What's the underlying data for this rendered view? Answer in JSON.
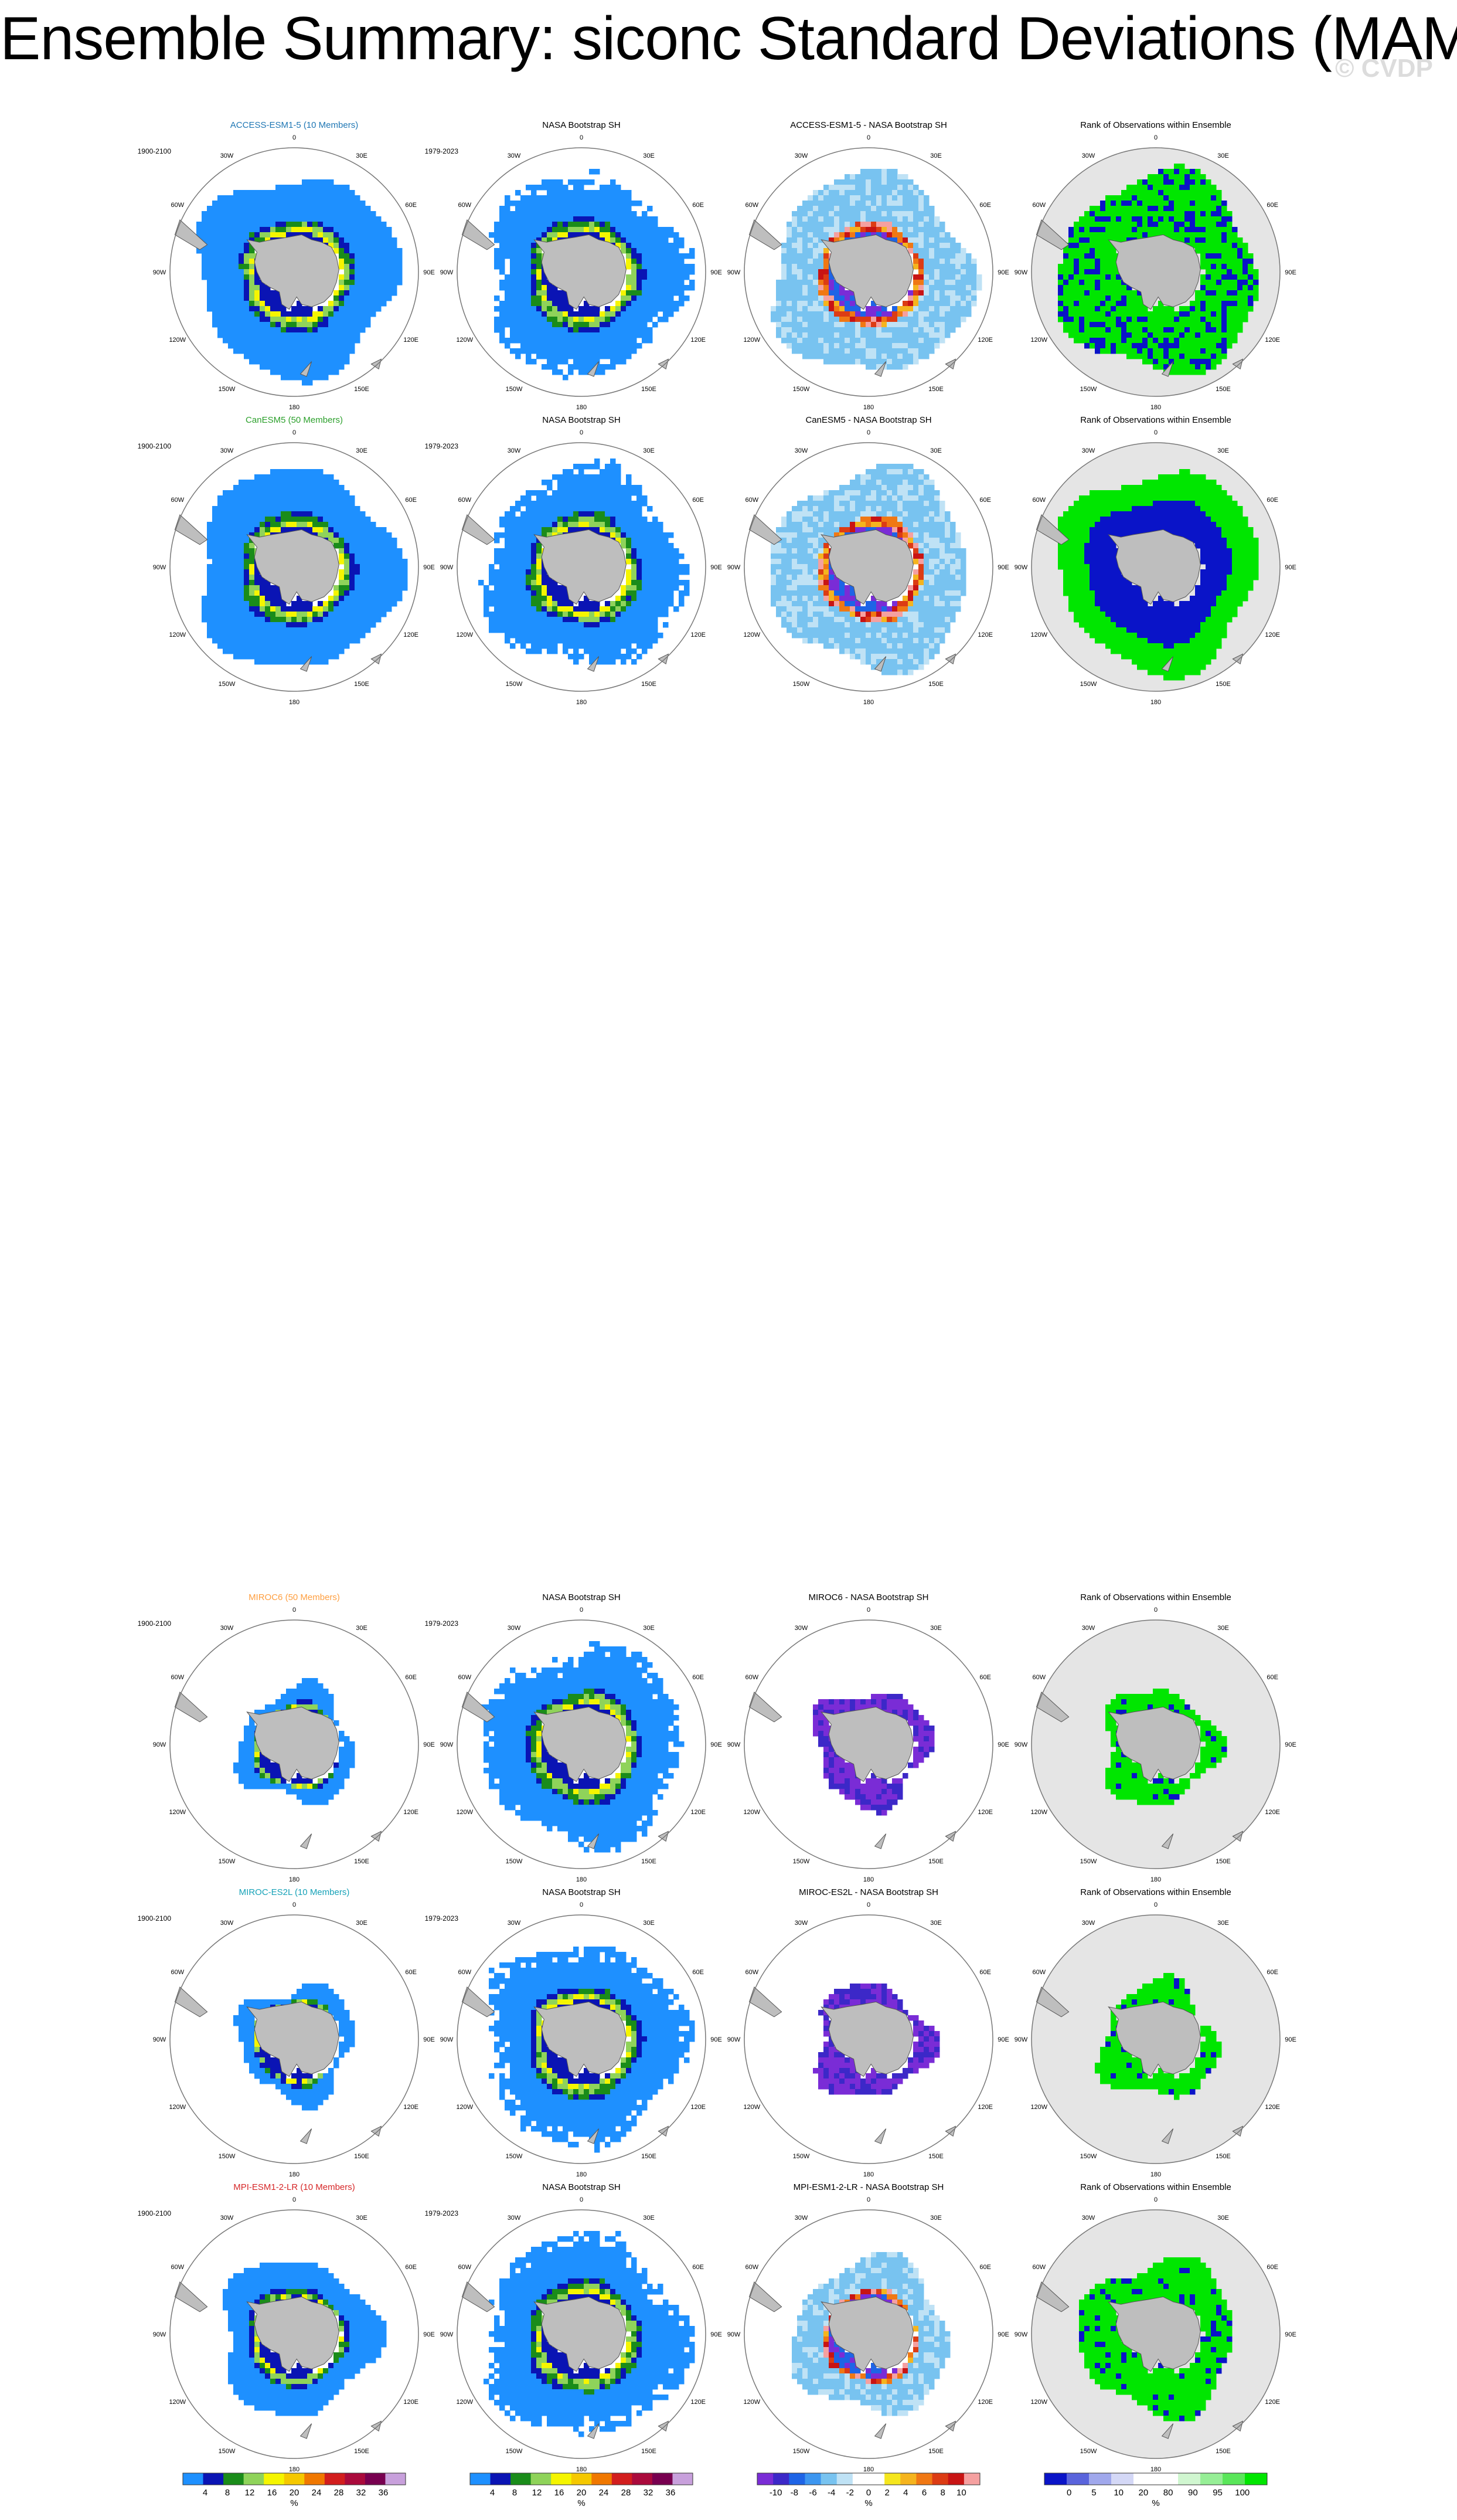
{
  "title": "Ensemble Summary: siconc Standard Deviations (MAM)",
  "watermark": "© CVDP",
  "lon_labels": [
    "0",
    "30E",
    "60E",
    "90E",
    "120E",
    "150E",
    "180",
    "150W",
    "120W",
    "90W",
    "60W",
    "30W"
  ],
  "year_labels": {
    "model": "1900-2100",
    "obs": "1979-2023"
  },
  "column_titles": {
    "obs": "NASA Bootstrap SH",
    "rank": "Rank of Observations within Ensemble"
  },
  "rows": [
    {
      "model": "ACCESS-ESM1-5 (10 Members)",
      "model_color": "#1f77b4",
      "diff": "ACCESS-ESM1-5 - NASA Bootstrap SH",
      "extent": "large",
      "rank_mode": "mixed"
    },
    {
      "model": "CanESM5 (50 Members)",
      "model_color": "#2ca02c",
      "diff": "CanESM5 - NASA Bootstrap SH",
      "extent": "large",
      "rank_mode": "low"
    },
    {
      "model": "MIROC6 (50 Members)",
      "model_color": "#ff9f40",
      "diff": "MIROC6 - NASA Bootstrap SH",
      "extent": "small",
      "rank_mode": "high"
    },
    {
      "model": "MIROC-ES2L (10 Members)",
      "model_color": "#17a2b8",
      "diff": "MIROC-ES2L - NASA Bootstrap SH",
      "extent": "small",
      "rank_mode": "high"
    },
    {
      "model": "MPI-ESM1-2-LR (10 Members)",
      "model_color": "#d62728",
      "diff": "MPI-ESM1-2-LR - NASA Bootstrap SH",
      "extent": "medium",
      "rank_mode": "high"
    }
  ],
  "colorbars": [
    {
      "labels": [
        "4",
        "8",
        "12",
        "16",
        "20",
        "24",
        "28",
        "32",
        "36"
      ],
      "unit": "%",
      "colors": [
        "#1e90ff",
        "#0a14b4",
        "#1a8c1a",
        "#8fd35a",
        "#f5f500",
        "#f5c800",
        "#f07800",
        "#d21e1e",
        "#aa0a3c",
        "#780050",
        "#c8a0dc"
      ]
    },
    {
      "labels": [
        "4",
        "8",
        "12",
        "16",
        "20",
        "24",
        "28",
        "32",
        "36"
      ],
      "unit": "%",
      "colors": [
        "#1e90ff",
        "#0a14b4",
        "#1a8c1a",
        "#8fd35a",
        "#f5f500",
        "#f5c800",
        "#f07800",
        "#d21e1e",
        "#aa0a3c",
        "#780050",
        "#c8a0dc"
      ]
    },
    {
      "labels": [
        "-10",
        "-8",
        "-6",
        "-4",
        "-2",
        "0",
        "2",
        "4",
        "6",
        "8",
        "10"
      ],
      "unit": "%",
      "colors": [
        "#7a2cd6",
        "#3c28c8",
        "#1e64e6",
        "#3c96f0",
        "#78c3f0",
        "#bfe2f5",
        "#ffffff",
        "#ffffff",
        "#f5e61e",
        "#f5b41e",
        "#f07814",
        "#dc3c14",
        "#c81414",
        "#f5a0a0"
      ]
    },
    {
      "labels": [
        "0",
        "5",
        "10",
        "20",
        "80",
        "90",
        "95",
        "100"
      ],
      "unit": "%",
      "colors": [
        "#0a14c8",
        "#5a64dc",
        "#a0a8ec",
        "#d4d8f6",
        "#ffffff",
        "#ffffff",
        "#d0f6d0",
        "#96ee96",
        "#5ae65a",
        "#00e600"
      ]
    }
  ],
  "legend_colors": {
    "land": "#bebebe",
    "ocean_rank": "#e5e5e5"
  }
}
